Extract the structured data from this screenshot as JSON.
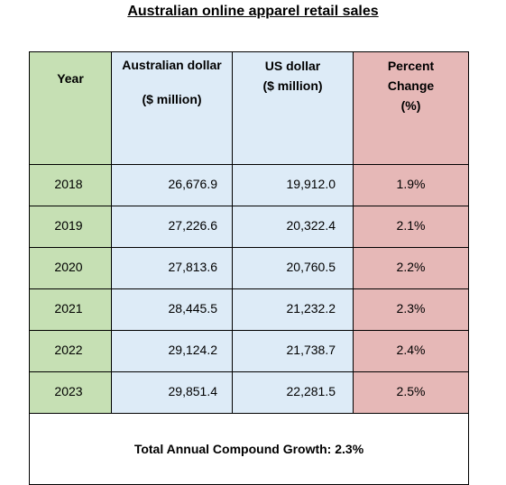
{
  "title": "Australian online apparel retail sales",
  "headers": {
    "year": "Year",
    "aud_line1": "Australian dollar",
    "aud_line2": "($ million)",
    "usd_line1": "US dollar",
    "usd_line2": "($ million)",
    "pct_line1": "Percent",
    "pct_line2": "Change",
    "pct_line3": "(%)"
  },
  "rows": [
    {
      "year": "2018",
      "aud": "26,676.9",
      "usd": "19,912.0",
      "pct": "1.9%"
    },
    {
      "year": "2019",
      "aud": "27,226.6",
      "usd": "20,322.4",
      "pct": "2.1%"
    },
    {
      "year": "2020",
      "aud": "27,813.6",
      "usd": "20,760.5",
      "pct": "2.2%"
    },
    {
      "year": "2021",
      "aud": "28,445.5",
      "usd": "21,232.2",
      "pct": "2.3%"
    },
    {
      "year": "2022",
      "aud": "29,124.2",
      "usd": "21,738.7",
      "pct": "2.4%"
    },
    {
      "year": "2023",
      "aud": "29,851.4",
      "usd": "22,281.5",
      "pct": "2.5%"
    }
  ],
  "footer": "Total Annual Compound Growth: 2.3%",
  "colors": {
    "year_column": "#c6e0b4",
    "currency_columns": "#ddebf7",
    "percent_column": "#e6b8b7"
  }
}
